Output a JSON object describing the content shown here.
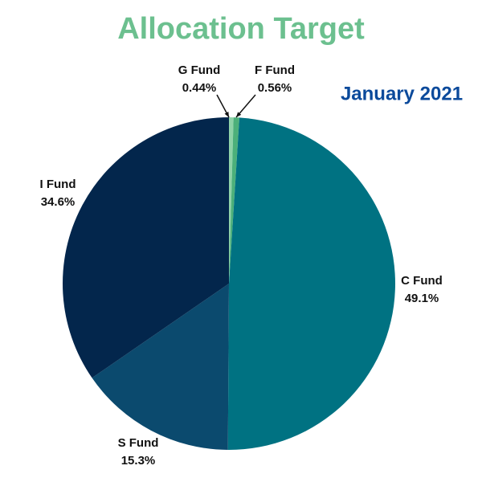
{
  "chart_data": {
    "type": "pie",
    "title": "Allocation Target",
    "subtitle": "January 2021",
    "title_color": "#6cc08f",
    "subtitle_color": "#0b4a9b",
    "categories": [
      "G Fund",
      "F Fund",
      "C Fund",
      "S Fund",
      "I Fund"
    ],
    "values": [
      0.44,
      0.56,
      49.1,
      15.3,
      34.6
    ],
    "value_labels": [
      "0.44%",
      "0.56%",
      "49.1%",
      "15.3%",
      "34.6%"
    ],
    "colors": [
      "#8fd3a8",
      "#4cb07a",
      "#007282",
      "#0b4a6e",
      "#03264c"
    ]
  }
}
